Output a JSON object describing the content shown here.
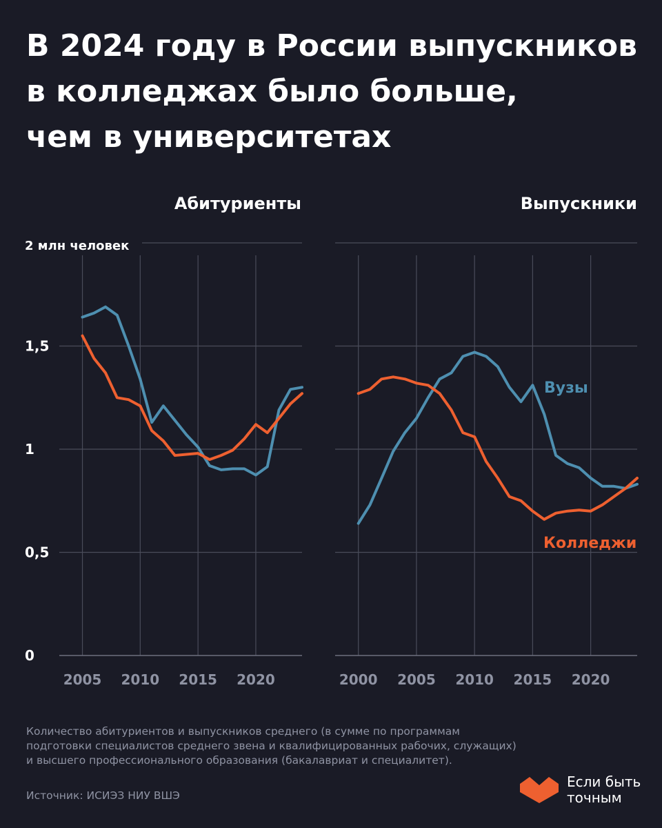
{
  "title": {
    "line1": "В 2024 году в России выпускников",
    "line2": "в колледжах было больше,",
    "line3": "чем в университетах"
  },
  "colors": {
    "background": "#1a1b26",
    "universities": "#4e8fb0",
    "colleges": "#ee6030",
    "grid": "#4a4c5a",
    "text": "#ffffff",
    "muted": "#8f93a3"
  },
  "chart_data": [
    {
      "type": "line",
      "title": "Абитуриенты",
      "unit_label": "2 млн человек",
      "ylim": [
        0,
        2
      ],
      "y_ticks": [
        {
          "value": 0,
          "label": "0"
        },
        {
          "value": 0.5,
          "label": "0,5"
        },
        {
          "value": 1,
          "label": "1"
        },
        {
          "value": 1.5,
          "label": "1,5"
        }
      ],
      "xlim": [
        2003,
        2024
      ],
      "x_ticks": [
        2005,
        2010,
        2015,
        2020
      ],
      "series": [
        {
          "name": "Вузы",
          "x": [
            2005,
            2006,
            2007,
            2008,
            2009,
            2010,
            2011,
            2012,
            2013,
            2014,
            2015,
            2016,
            2017,
            2018,
            2019,
            2020,
            2021,
            2022,
            2023,
            2024
          ],
          "values": [
            1.64,
            1.66,
            1.69,
            1.65,
            1.5,
            1.34,
            1.13,
            1.21,
            1.14,
            1.07,
            1.01,
            0.92,
            0.9,
            0.905,
            0.905,
            0.875,
            0.915,
            1.19,
            1.29,
            1.3
          ]
        },
        {
          "name": "Колледжи",
          "x": [
            2005,
            2006,
            2007,
            2008,
            2009,
            2010,
            2011,
            2012,
            2013,
            2014,
            2015,
            2016,
            2017,
            2018,
            2019,
            2020,
            2021,
            2022,
            2023,
            2024
          ],
          "values": [
            1.55,
            1.44,
            1.37,
            1.25,
            1.24,
            1.21,
            1.09,
            1.04,
            0.97,
            0.975,
            0.98,
            0.95,
            0.97,
            0.995,
            1.05,
            1.12,
            1.08,
            1.15,
            1.22,
            1.27
          ]
        }
      ]
    },
    {
      "type": "line",
      "title": "Выпускники",
      "ylim": [
        0,
        2
      ],
      "xlim": [
        1998,
        2024
      ],
      "x_ticks": [
        2000,
        2005,
        2010,
        2015,
        2020
      ],
      "series": [
        {
          "name": "Вузы",
          "x": [
            2000,
            2001,
            2002,
            2003,
            2004,
            2005,
            2006,
            2007,
            2008,
            2009,
            2010,
            2011,
            2012,
            2013,
            2014,
            2015,
            2016,
            2017,
            2018,
            2019,
            2020,
            2021,
            2022,
            2023,
            2024
          ],
          "values": [
            0.64,
            0.73,
            0.86,
            0.99,
            1.08,
            1.15,
            1.25,
            1.34,
            1.37,
            1.45,
            1.47,
            1.45,
            1.4,
            1.3,
            1.23,
            1.31,
            1.17,
            0.97,
            0.93,
            0.91,
            0.86,
            0.82,
            0.82,
            0.81,
            0.83
          ]
        },
        {
          "name": "Колледжи",
          "x": [
            2000,
            2001,
            2002,
            2003,
            2004,
            2005,
            2006,
            2007,
            2008,
            2009,
            2010,
            2011,
            2012,
            2013,
            2014,
            2015,
            2016,
            2017,
            2018,
            2019,
            2020,
            2021,
            2022,
            2023,
            2024
          ],
          "values": [
            1.27,
            1.29,
            1.34,
            1.35,
            1.34,
            1.32,
            1.31,
            1.27,
            1.19,
            1.08,
            1.06,
            0.94,
            0.86,
            0.77,
            0.75,
            0.7,
            0.66,
            0.69,
            0.7,
            0.705,
            0.7,
            0.73,
            0.77,
            0.81,
            0.86
          ]
        }
      ]
    }
  ],
  "labels": {
    "universities": "Вузы",
    "colleges": "Колледжи"
  },
  "footnote": {
    "line1": "Количество абитуриентов и выпускников среднего (в сумме по программам",
    "line2": "подготовки специалистов среднего звена и квалифицированных рабочих, служащих)",
    "line3": "и высшего профессионального образования (бакалавриат и специалитет).",
    "source": "Источник: ИСИЭЗ НИУ ВШЭ"
  },
  "brand": {
    "line1": "Если быть",
    "line2": "точным"
  }
}
